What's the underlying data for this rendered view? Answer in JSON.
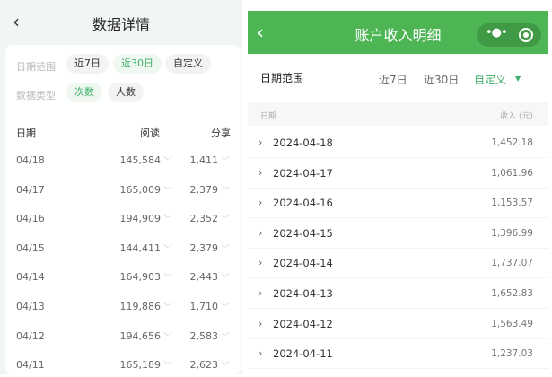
{
  "left": {
    "title": "数据详情",
    "back_icon": "chevron-left-icon",
    "filters": {
      "date_label": "日期范围",
      "date_options": [
        "近7日",
        "近30日",
        "自定义"
      ],
      "date_selected": 1,
      "type_label": "数据类型",
      "type_options": [
        "次数",
        "人数"
      ],
      "type_selected": 0
    },
    "columns": [
      "日期",
      "阅读",
      "分享"
    ],
    "rows": [
      [
        "04/18",
        "145,584",
        "1,411"
      ],
      [
        "04/17",
        "165,009",
        "2,379"
      ],
      [
        "04/16",
        "194,909",
        "2,352"
      ],
      [
        "04/15",
        "144,411",
        "2,379"
      ],
      [
        "04/14",
        "164,903",
        "2,443"
      ],
      [
        "04/13",
        "119,886",
        "1,710"
      ],
      [
        "04/12",
        "194,656",
        "2,583"
      ],
      [
        "04/11",
        "165,189",
        "2,623"
      ]
    ]
  },
  "right": {
    "title": "账户收入明细",
    "header_color": "#4db554",
    "accent": "#3fae69",
    "filter_label": "日期范围",
    "options": [
      "近7日",
      "近30日",
      "自定义"
    ],
    "selected": 2,
    "columns": [
      "日期",
      "收入 (元)"
    ],
    "rows": [
      [
        "2024-04-18",
        "1,452.18"
      ],
      [
        "2024-04-17",
        "1,061.96"
      ],
      [
        "2024-04-16",
        "1,153.57"
      ],
      [
        "2024-04-15",
        "1,396.99"
      ],
      [
        "2024-04-14",
        "1,737.07"
      ],
      [
        "2024-04-13",
        "1,652.83"
      ],
      [
        "2024-04-12",
        "1,563.49"
      ],
      [
        "2024-04-11",
        "1,237.03"
      ]
    ]
  }
}
